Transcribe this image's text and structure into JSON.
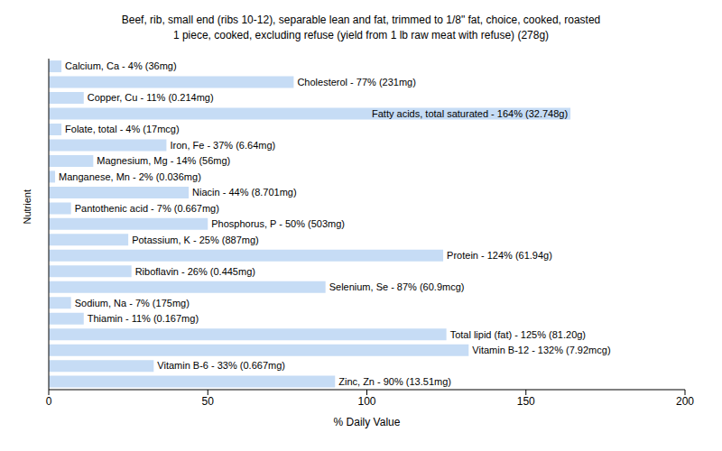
{
  "chart_data": {
    "type": "bar",
    "orientation": "horizontal",
    "title": "Beef, rib, small end (ribs 10-12), separable lean and fat, trimmed to 1/8\" fat, choice, cooked, roasted\n1 piece, cooked, excluding refuse (yield from 1 lb raw meat with refuse) (278g)",
    "x_label": "% Daily Value",
    "y_label": "Nutrient",
    "categories": [
      "Calcium, Ca",
      "Cholesterol",
      "Copper, Cu",
      "Fatty acids, total saturated",
      "Folate, total",
      "Iron, Fe",
      "Magnesium, Mg",
      "Manganese, Mn",
      "Niacin",
      "Pantothenic acid",
      "Phosphorus, P",
      "Potassium, K",
      "Protein",
      "Riboflavin",
      "Selenium, Se",
      "Sodium, Na",
      "Thiamin",
      "Total lipid (fat)",
      "Vitamin B-12",
      "Vitamin B-6",
      "Zinc, Zn"
    ],
    "values": [
      4,
      77,
      11,
      164,
      4,
      37,
      14,
      2,
      44,
      7,
      50,
      25,
      124,
      26,
      87,
      7,
      11,
      125,
      132,
      33,
      90
    ],
    "value_labels": [
      "Calcium, Ca - 4% (36mg)",
      "Cholesterol - 77% (231mg)",
      "Copper, Cu - 11% (0.214mg)",
      "Fatty acids, total saturated - 164% (32.748g)",
      "Folate, total - 4% (17mcg)",
      "Iron, Fe - 37% (6.64mg)",
      "Magnesium, Mg - 14% (56mg)",
      "Manganese, Mn - 2% (0.036mg)",
      "Niacin - 44% (8.701mg)",
      "Pantothenic acid - 7% (0.667mg)",
      "Phosphorus, P - 50% (503mg)",
      "Potassium, K - 25% (887mg)",
      "Protein - 124% (61.94g)",
      "Riboflavin - 26% (0.445mg)",
      "Selenium, Se - 87% (60.9mcg)",
      "Sodium, Na - 7% (175mg)",
      "Thiamin - 11% (0.167mg)",
      "Total lipid (fat) - 125% (81.20g)",
      "Vitamin B-12 - 132% (7.92mcg)",
      "Vitamin B-6 - 33% (0.667mg)",
      "Zinc, Zn - 90% (13.51mg)"
    ],
    "color": "#c6dcf5",
    "xlim": [
      0,
      200
    ],
    "xticks": [
      0,
      50,
      100,
      150,
      200
    ],
    "grid": false,
    "data_labels": true,
    "tick_labels": "x"
  }
}
